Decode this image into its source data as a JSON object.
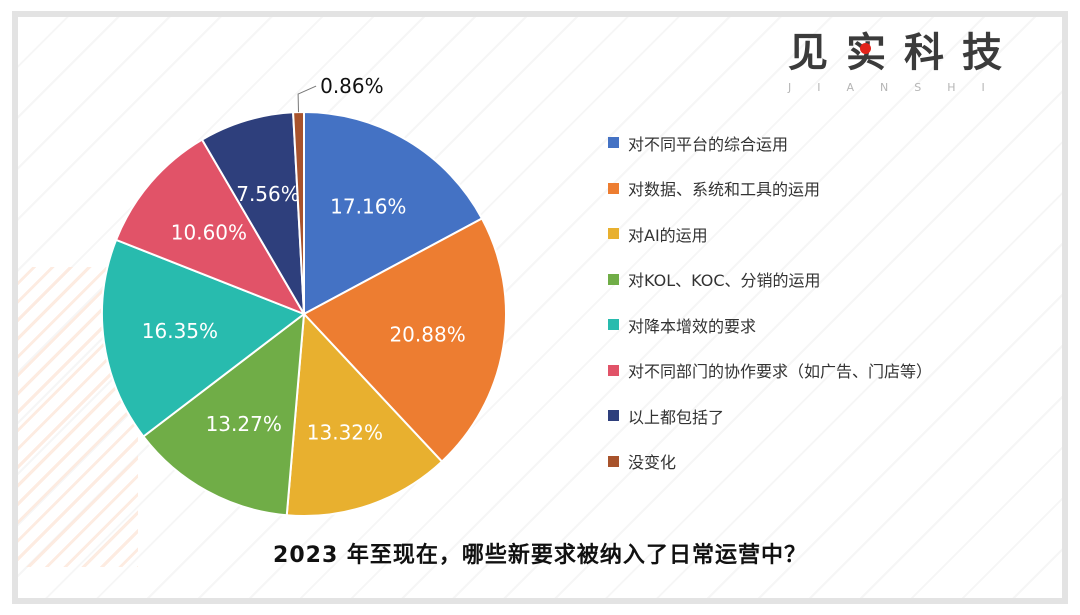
{
  "brand": {
    "name_cn": "见实科技",
    "name_en": "JIANSHI"
  },
  "colors": {
    "background": "#ffffff",
    "frame": "#e3e3e3",
    "brand_dot": "#e2231a"
  },
  "chart_data": {
    "type": "pie",
    "title": "2023 年至现在，哪些新要求被纳入了日常运营中？",
    "categories": [
      "对不同平台的综合运用",
      "对数据、系统和工具的运用",
      "对AI的运用",
      "对KOL、KOC、分销的运用",
      "对降本增效的要求",
      "对不同部门的协作要求（如广告、门店等）",
      "以上都包括了",
      "没变化"
    ],
    "values": [
      17.16,
      20.88,
      13.32,
      13.27,
      16.35,
      10.6,
      7.56,
      0.86
    ],
    "labels": [
      "17.16%",
      "20.88%",
      "13.32%",
      "13.27%",
      "16.35%",
      "10.60%",
      "7.56%",
      "0.86%"
    ],
    "colors": [
      "#4472c4",
      "#ed7d31",
      "#e8b02f",
      "#70ad47",
      "#28bbae",
      "#e15368",
      "#2e3f7c",
      "#a8532c"
    ],
    "legend_position": "right",
    "start_angle": "top, clockwise"
  }
}
